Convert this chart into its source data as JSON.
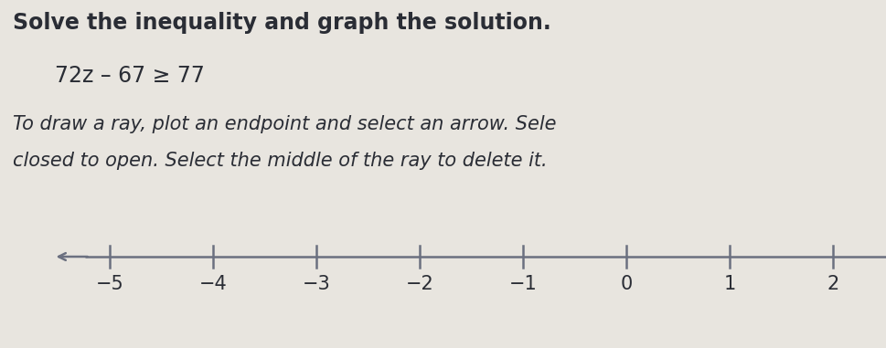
{
  "title": "Solve the inequality and graph the solution.",
  "inequality": "72z – 67 ≥ 77",
  "instruction_line1": "To draw a ray, plot an endpoint and select an arrow. Sele",
  "instruction_line2": "closed to open. Select the middle of the ray to delete it.",
  "tick_positions": [
    -5,
    -4,
    -3,
    -2,
    -1,
    0,
    1,
    2
  ],
  "tick_labels": [
    "−5",
    "−4",
    "−3",
    "−2",
    "−1",
    "0",
    "1",
    "2"
  ],
  "background_color": "#e8e5df",
  "text_color": "#2a2d35",
  "line_color": "#6b7080",
  "title_fontsize": 17,
  "inequality_fontsize": 17,
  "instruction_fontsize": 15,
  "tick_label_fontsize": 15
}
